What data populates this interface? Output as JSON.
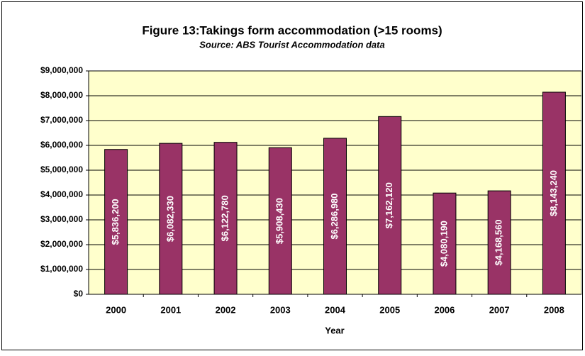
{
  "chart_data": {
    "type": "bar",
    "title": "Figure 13:Takings form accommodation (>15 rooms)",
    "subtitle": "Source: ABS Tourist Accommodation data",
    "x_label": "Year",
    "categories": [
      "2000",
      "2001",
      "2002",
      "2003",
      "2004",
      "2005",
      "2006",
      "2007",
      "2008"
    ],
    "values": [
      5836200,
      6082330,
      6122780,
      5908430,
      6286980,
      7162120,
      4080190,
      4168560,
      8143240
    ],
    "value_labels": [
      "$5,836,200",
      "$6,082,330",
      "$6,122,780",
      "$5,908,430",
      "$6,286,980",
      "$7,162,120",
      "$4,080,190",
      "$4,168,560",
      "$8,143,240"
    ],
    "color": "#993366",
    "ylim": [
      0,
      9000000
    ],
    "yticks": [
      {
        "value": 0,
        "label": "$0"
      },
      {
        "value": 1000000,
        "label": "$1,000,000"
      },
      {
        "value": 2000000,
        "label": "$2,000,000"
      },
      {
        "value": 3000000,
        "label": "$3,000,000"
      },
      {
        "value": 4000000,
        "label": "$4,000,000"
      },
      {
        "value": 5000000,
        "label": "$5,000,000"
      },
      {
        "value": 6000000,
        "label": "$6,000,000"
      },
      {
        "value": 7000000,
        "label": "$7,000,000"
      },
      {
        "value": 8000000,
        "label": "$8,000,000"
      },
      {
        "value": 9000000,
        "label": "$9,000,000"
      }
    ],
    "grid": true
  }
}
